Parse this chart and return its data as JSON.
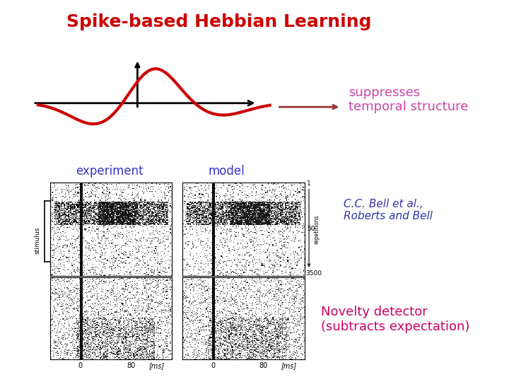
{
  "title": "Spike-based Hebbian Learning",
  "title_color": "#cc0000",
  "title_fontsize": 18,
  "title_style": "bold",
  "suppresses_text": "suppresses\ntemporal structure",
  "suppresses_color": "#cc44aa",
  "suppresses_fontsize": 13,
  "experiment_label": "experiment",
  "model_label": "model",
  "label_color": "#3333cc",
  "label_fontsize": 12,
  "citation_text": "C.C. Bell et al.,\nRoberts and Bell",
  "citation_color": "#3333aa",
  "citation_fontsize": 11,
  "novelty_text": "Novelty detector\n(subtracts expectation)",
  "novelty_color": "#cc0066",
  "novelty_fontsize": 13,
  "bg_color": "#ffffff",
  "waveform_color": "#cc0000",
  "arrow_color": "#000000",
  "red_arrow_color": "#993333",
  "axis_line_color": "#000000",
  "waveform_lw": 3.0,
  "axis_lw": 2.0
}
